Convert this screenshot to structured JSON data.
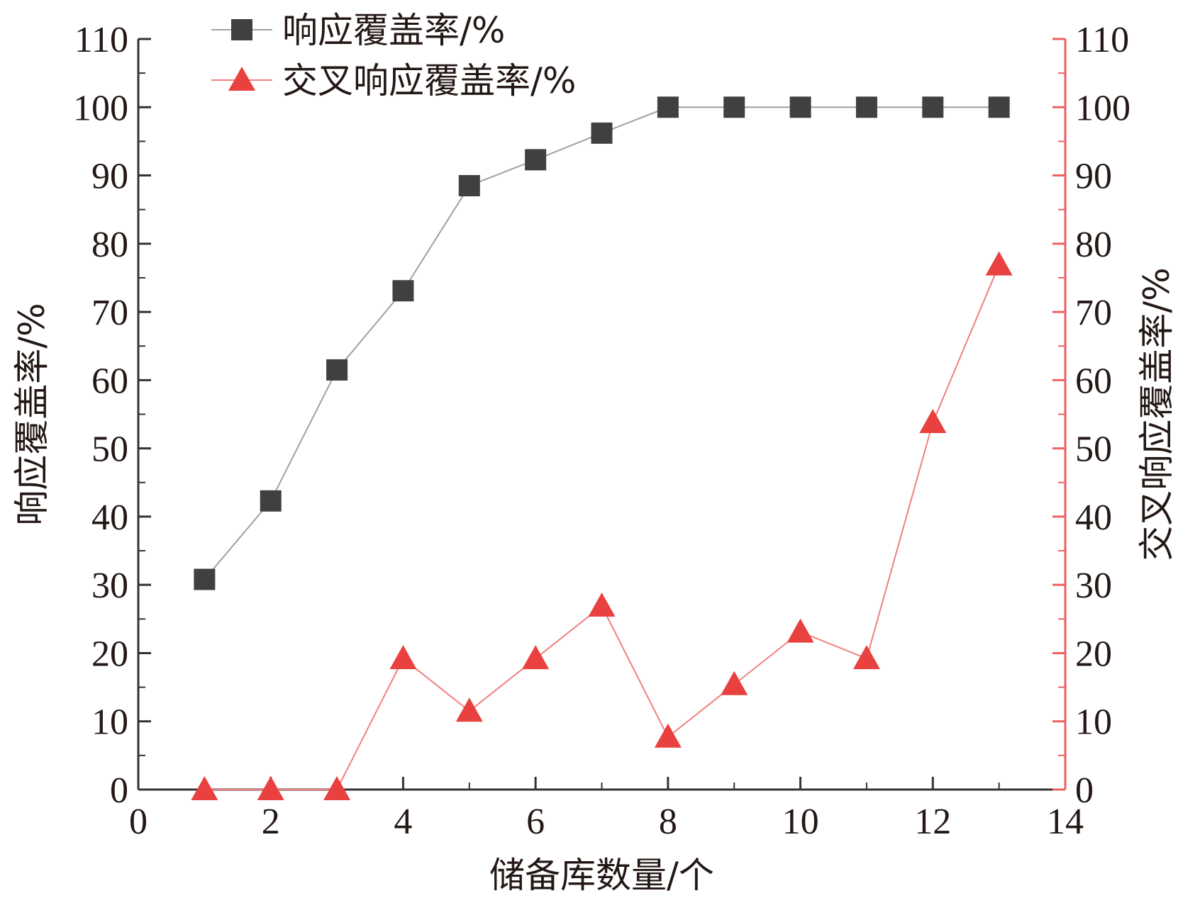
{
  "chart_data": {
    "type": "line",
    "x": [
      1,
      2,
      3,
      4,
      5,
      6,
      7,
      8,
      9,
      10,
      11,
      12,
      13
    ],
    "xlabel": "储备库数量/个",
    "ylabel_left": "响应覆盖率/%",
    "ylabel_right": "交叉响应覆盖率/%",
    "xlim": [
      0,
      14
    ],
    "ylim_left": [
      0,
      110
    ],
    "ylim_right": [
      0,
      110
    ],
    "x_ticks": [
      "0",
      "2",
      "4",
      "6",
      "8",
      "10",
      "12",
      "14"
    ],
    "y_ticks_left": [
      "0",
      "10",
      "20",
      "30",
      "40",
      "50",
      "60",
      "70",
      "80",
      "90",
      "100",
      "110"
    ],
    "y_ticks_right": [
      "0",
      "10",
      "20",
      "30",
      "40",
      "50",
      "60",
      "70",
      "80",
      "90",
      "100",
      "110"
    ],
    "grid": false,
    "legend_position": "top-left",
    "series": [
      {
        "name": "响应覆盖率/%",
        "axis": "left",
        "marker": "square",
        "color": "#404040",
        "line_color": "#a0a0a0",
        "values": [
          30.8,
          42.3,
          61.5,
          73.1,
          88.5,
          92.3,
          96.2,
          100,
          100,
          100,
          100,
          100,
          100
        ]
      },
      {
        "name": "交叉响应覆盖率/%",
        "axis": "right",
        "marker": "triangle",
        "color": "#e8413f",
        "line_color": "#f08080",
        "values": [
          0,
          0,
          0,
          19.2,
          11.5,
          19.2,
          26.9,
          7.7,
          15.4,
          23.1,
          19.2,
          53.8,
          76.9
        ]
      }
    ],
    "colors": {
      "left_axis": "#333333",
      "right_axis": "#f06060"
    }
  }
}
